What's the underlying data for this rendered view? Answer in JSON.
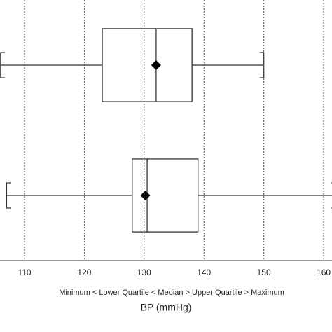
{
  "chart_data": {
    "type": "boxplot",
    "xlabel": "BP (mmHg)",
    "subtitle": "Minimum < Lower Quartile < Median > Upper Quartile > Maximum",
    "boxes": [
      {
        "min": 106,
        "q1": 123,
        "median": 132,
        "q3": 138,
        "max": 150,
        "mean": 132
      },
      {
        "min": 107,
        "q1": 128,
        "median": 130.5,
        "q3": 139,
        "max": 162,
        "mean": 130.2
      }
    ],
    "xlim": [
      105.9,
      161.4
    ],
    "xticks": [
      110,
      120,
      130,
      140,
      150,
      160
    ],
    "grid": true
  }
}
